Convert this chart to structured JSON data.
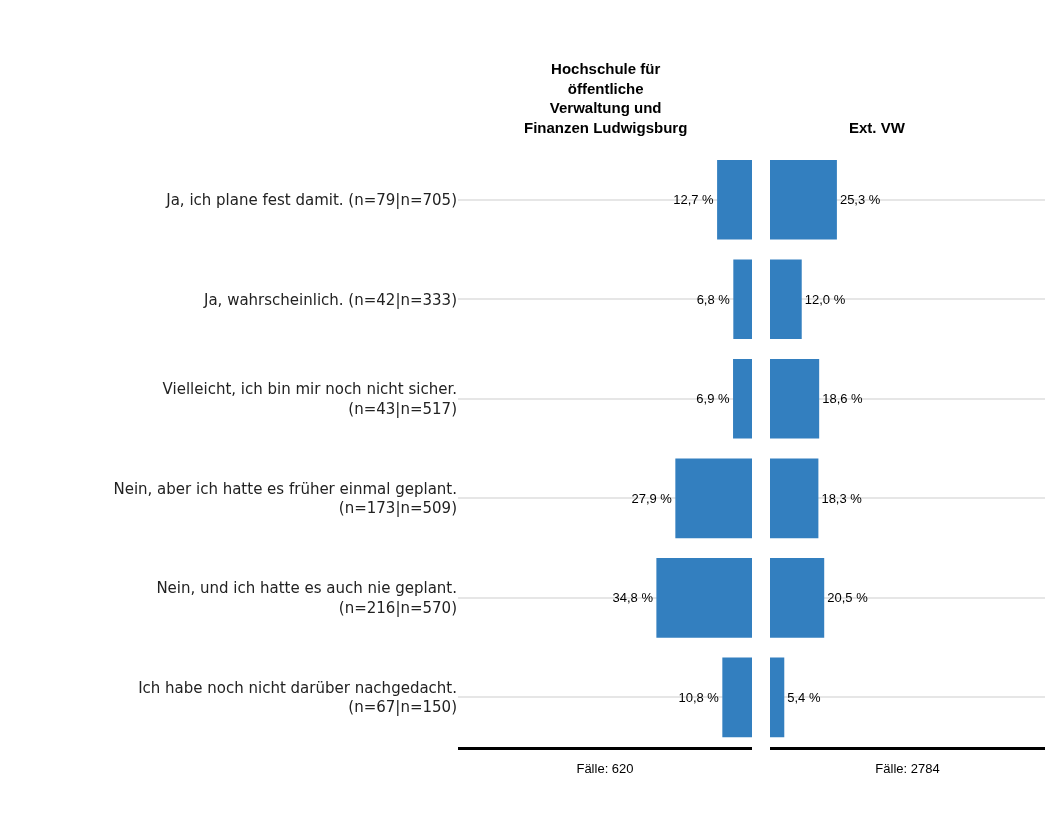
{
  "chart_data": [
    {
      "type": "bar",
      "orientation": "horizontal",
      "title": "Hochschule für öffentliche Verwaltung und Finanzen Ludwigsburg",
      "xlabel": "Fälle: 620",
      "categories": [
        "Ja, ich plane fest damit. (n=79|n=705)",
        "Ja, wahrscheinlich. (n=42|n=333)",
        "Vielleicht, ich bin mir noch nicht sicher. (n=43|n=517)",
        "Nein, aber ich hatte es früher einmal geplant. (n=173|n=509)",
        "Nein, und ich hatte es auch nie geplant. (n=216|n=570)",
        "Ich habe noch nicht darüber nachgedacht. (n=67|n=150)"
      ],
      "values": [
        12.7,
        6.8,
        6.9,
        27.9,
        34.8,
        10.8
      ],
      "value_labels": [
        "12,7 %",
        "6,8 %",
        "6,9 %",
        "27,9 %",
        "34,8 %",
        "10,8 %"
      ],
      "color": "#337fbf",
      "xlim": [
        107,
        0
      ],
      "grid": "y",
      "tick_labels": "y"
    },
    {
      "type": "bar",
      "orientation": "horizontal",
      "title": "Ext. VW",
      "xlabel": "Fälle: 2784",
      "categories": [
        "Ja, ich plane fest damit. (n=79|n=705)",
        "Ja, wahrscheinlich. (n=42|n=333)",
        "Vielleicht, ich bin mir noch nicht sicher. (n=43|n=517)",
        "Nein, aber ich hatte es früher einmal geplant. (n=173|n=509)",
        "Nein, und ich hatte es auch nie geplant. (n=216|n=570)",
        "Ich habe noch nicht darüber nachgedacht. (n=67|n=150)"
      ],
      "values": [
        25.3,
        12.0,
        18.6,
        18.3,
        20.5,
        5.4
      ],
      "value_labels": [
        "25,3 %",
        "12,0 %",
        "18,6 %",
        "18,3 %",
        "20,5 %",
        "5,4 %"
      ],
      "color": "#337fbf",
      "xlim": [
        0,
        104
      ],
      "grid": "y",
      "tick_labels": false
    }
  ]
}
